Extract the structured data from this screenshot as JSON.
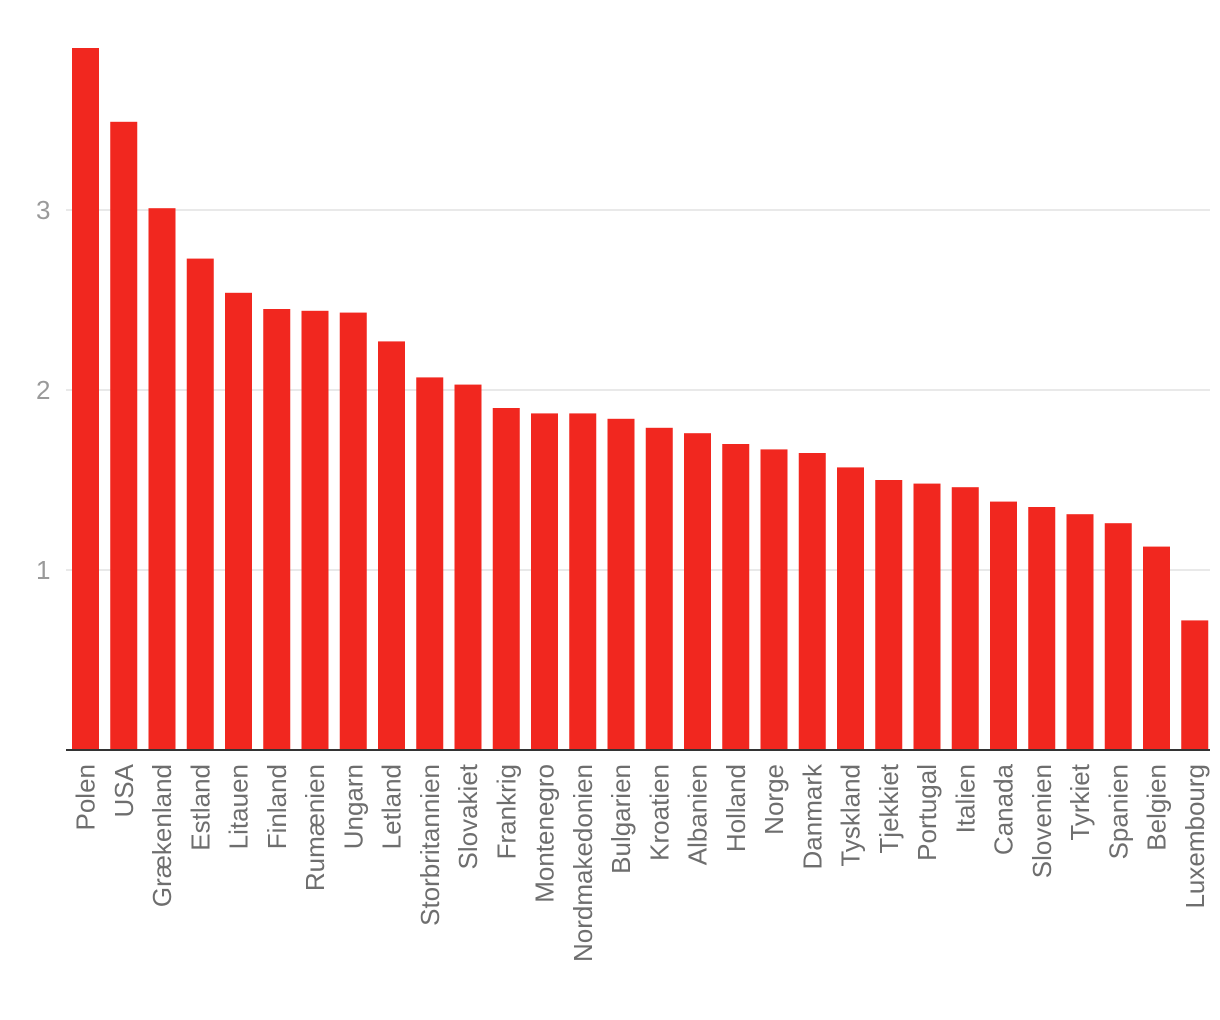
{
  "chart_data": {
    "type": "bar",
    "categories": [
      "Polen",
      "USA",
      "Grækenland",
      "Estland",
      "Litauen",
      "Finland",
      "Rumænien",
      "Ungarn",
      "Letland",
      "Storbritannien",
      "Slovakiet",
      "Frankrig",
      "Montenegro",
      "Nordmakedonien",
      "Bulgarien",
      "Kroatien",
      "Albanien",
      "Holland",
      "Norge",
      "Danmark",
      "Tyskland",
      "Tjekkiet",
      "Portugal",
      "Italien",
      "Canada",
      "Slovenien",
      "Tyrkiet",
      "Spanien",
      "Belgien",
      "Luxembourg"
    ],
    "values": [
      3.9,
      3.49,
      3.01,
      2.73,
      2.54,
      2.45,
      2.44,
      2.43,
      2.27,
      2.07,
      2.03,
      1.9,
      1.87,
      1.87,
      1.84,
      1.79,
      1.76,
      1.7,
      1.67,
      1.65,
      1.57,
      1.5,
      1.48,
      1.46,
      1.38,
      1.35,
      1.31,
      1.26,
      1.13,
      0.72
    ],
    "yticks": [
      "1",
      "2",
      "3"
    ],
    "ylim": [
      0,
      4
    ],
    "grid": true,
    "bar_color": "#f1271f"
  }
}
